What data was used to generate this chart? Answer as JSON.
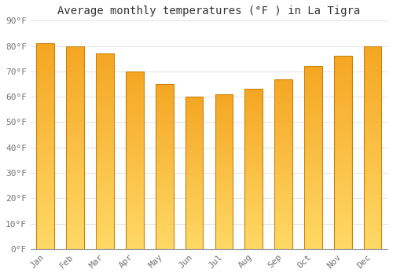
{
  "title": "Average monthly temperatures (°F ) in La Tigra",
  "months": [
    "Jan",
    "Feb",
    "Mar",
    "Apr",
    "May",
    "Jun",
    "Jul",
    "Aug",
    "Sep",
    "Oct",
    "Nov",
    "Dec"
  ],
  "values": [
    81,
    80,
    77,
    70,
    65,
    60,
    61,
    63,
    67,
    72,
    76,
    80
  ],
  "bar_color_top": "#F5A623",
  "bar_color_bottom": "#FFD966",
  "bar_edge_color": "#C8830A",
  "background_color": "#FFFFFF",
  "grid_color": "#DDDDDD",
  "text_color": "#777777",
  "title_color": "#333333",
  "ylim": [
    0,
    90
  ],
  "yticks": [
    0,
    10,
    20,
    30,
    40,
    50,
    60,
    70,
    80,
    90
  ],
  "title_fontsize": 10,
  "tick_fontsize": 8,
  "bar_width": 0.6
}
